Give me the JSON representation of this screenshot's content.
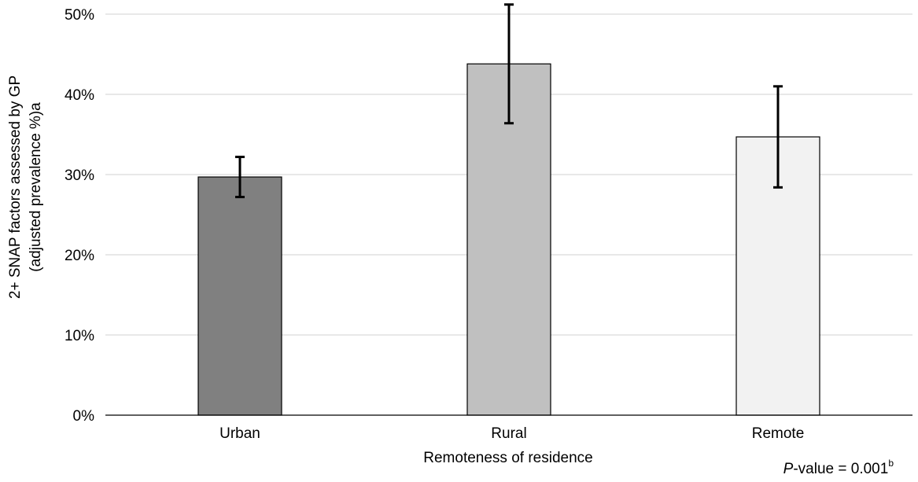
{
  "chart_data": {
    "type": "bar",
    "title": "",
    "xlabel": "Remoteness of residence",
    "ylabel_line1": "2+ SNAP factors assessed by GP",
    "ylabel_line2": "(adjusted prevalence %)a",
    "categories": [
      "Urban",
      "Rural",
      "Remote"
    ],
    "values": [
      29.7,
      43.8,
      34.7
    ],
    "error_low": [
      27.2,
      36.4,
      28.4
    ],
    "error_high": [
      32.2,
      51.2,
      41.0
    ],
    "bar_colors": [
      "#808080",
      "#c0c0c0",
      "#f2f2f2"
    ],
    "ylim": [
      0,
      50
    ],
    "yticks": [
      0,
      10,
      20,
      30,
      40,
      50
    ],
    "ytick_labels": [
      "0%",
      "10%",
      "20%",
      "30%",
      "40%",
      "50%"
    ],
    "grid": true,
    "annotation": {
      "prefix_italic": "P",
      "text": "-value = 0.001",
      "superscript": "b"
    }
  }
}
